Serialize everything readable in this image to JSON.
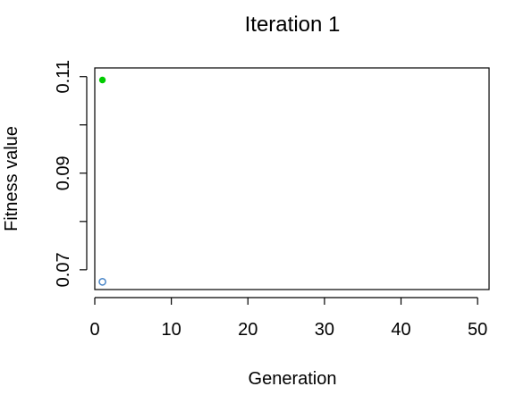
{
  "chart_data": {
    "type": "scatter",
    "title": "Iteration 1",
    "xlabel": "Generation",
    "ylabel": "Fitness value",
    "xlim": [
      0,
      51.5
    ],
    "ylim": [
      0.0659,
      0.1118
    ],
    "xticks": [
      0,
      10,
      20,
      30,
      40,
      50
    ],
    "xtick_labels": [
      "0",
      "10",
      "20",
      "30",
      "40",
      "50"
    ],
    "yticks": [
      0.07,
      0.08,
      0.09,
      0.1,
      0.11
    ],
    "ytick_labels": [
      "0.07",
      "",
      "0.09",
      "",
      "0.11"
    ],
    "grid": false,
    "series": [
      {
        "marker": "filled-circle",
        "color": "#00cc00",
        "x": [
          1
        ],
        "y": [
          0.1093
        ]
      },
      {
        "marker": "open-circle",
        "color": "#4a86c8",
        "x": [
          1
        ],
        "y": [
          0.0675
        ]
      }
    ]
  }
}
